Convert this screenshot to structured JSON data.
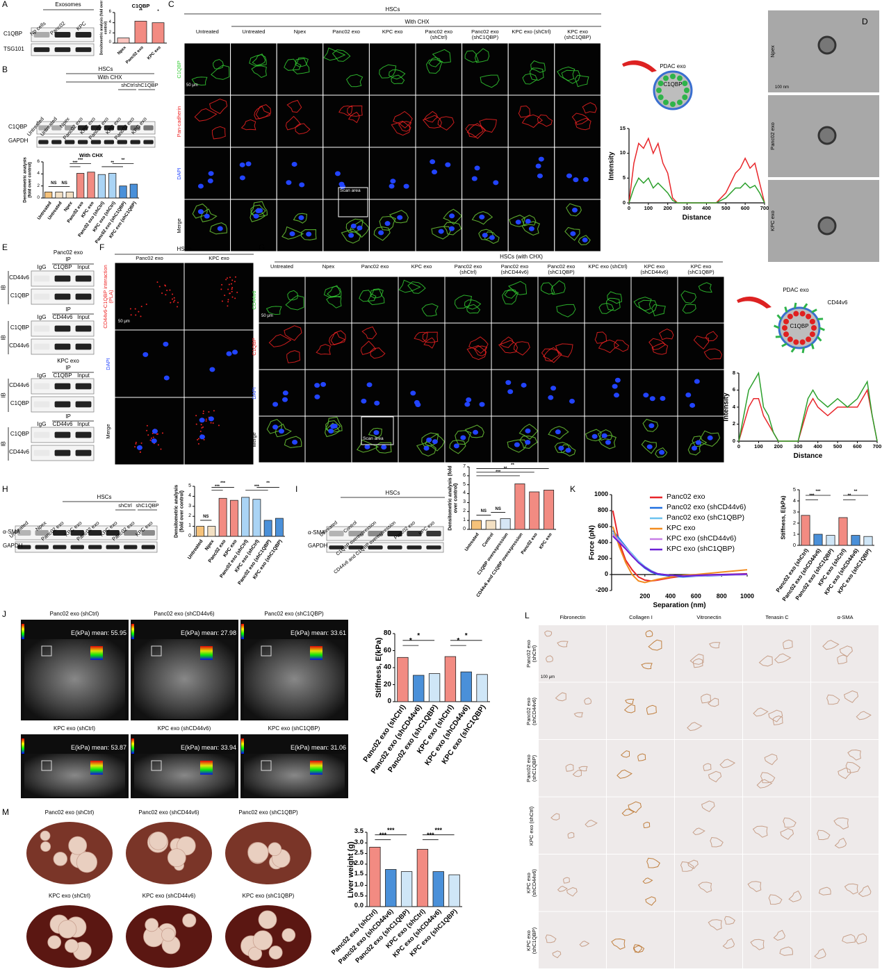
{
  "A": {
    "label": "A",
    "group": "Exosomes",
    "lanes": [
      "Np cells",
      "Panc02",
      "KPC"
    ],
    "bands": [
      "C1QBP",
      "TSG101"
    ],
    "chart": {
      "type": "bar",
      "title": "C1QBP",
      "ylabel": "Densitometric analysis (fold over control)",
      "categories": [
        "Npex",
        "Panc02 exo",
        "KPC exo"
      ],
      "values": [
        1,
        4.3,
        4
      ],
      "colors": [
        "#fbc4be",
        "#f28b82",
        "#f28b82"
      ],
      "ylim": [
        0,
        6
      ],
      "yticks": [
        0,
        2,
        4,
        6
      ],
      "annotations": [
        "**",
        "*"
      ]
    }
  },
  "B": {
    "label": "B",
    "header": "HSCs",
    "subheader": "With CHX",
    "groups": [
      "shCtrl",
      "shC1QBP"
    ],
    "lanes": [
      "Untreated",
      "Untreated",
      "Npex",
      "Panc02 exo",
      "KPC exo",
      "Panc02 exo",
      "KPC exo",
      "Panc02 exo",
      "KPC exo"
    ],
    "bands": [
      "C1QBP",
      "GAPDH"
    ],
    "chart": {
      "type": "bar",
      "title": "With CHX",
      "ylabel": "Densitometric analysis (fold over control)",
      "categories": [
        "Untreated",
        "Untreated",
        "Npex",
        "Panc02 exo",
        "KPC exo",
        "Panc02 exo (shCtrl)",
        "KPC exo (shCtrl)",
        "Panc02 exo (shC1QBP)",
        "KPC exo (shC1QBP)"
      ],
      "values": [
        1,
        1,
        1,
        4.1,
        4.3,
        3.9,
        4.1,
        2,
        2.3
      ],
      "colors": [
        "#f6c27a",
        "#f3e0c3",
        "#f3e0c3",
        "#f28b82",
        "#f28b82",
        "#aad4f5",
        "#aad4f5",
        "#4a90d9",
        "#4a90d9"
      ],
      "ylim": [
        0,
        6
      ],
      "yticks": [
        0,
        2,
        4,
        6
      ],
      "annotations": [
        "NS",
        "NS",
        "***",
        "***",
        "**",
        "**"
      ]
    }
  },
  "C": {
    "label": "C",
    "header": "HSCs",
    "subheader": "With CHX",
    "columns": [
      "Untreated",
      "Untreated",
      "Npex",
      "Panc02 exo",
      "KPC exo",
      "Panc02 exo (shCtrl)",
      "Panc02 exo (shC1QBP)",
      "KPC exo (shCtrl)",
      "KPC exo (shC1QBP)"
    ],
    "rows": [
      "C1QBP",
      "Pan-cadherin",
      "DAPI",
      "Merge"
    ],
    "scale": "50 μm",
    "scan": "Scan area",
    "scheme": [
      "PDAC exo",
      "C1QBP"
    ],
    "chart": {
      "type": "line",
      "xlabel": "Distance",
      "ylabel": "Intensity",
      "x": [
        0,
        25,
        50,
        75,
        100,
        125,
        150,
        175,
        200,
        225,
        250,
        300,
        350,
        400,
        450,
        500,
        525,
        550,
        575,
        600,
        625,
        650,
        675,
        700
      ],
      "series": [
        {
          "color": "#e8262a",
          "values": [
            0,
            8,
            12,
            11,
            13,
            10,
            12,
            8,
            6,
            1,
            0,
            0,
            0,
            0,
            0,
            2,
            4,
            6,
            7,
            9,
            7,
            8,
            4,
            0
          ]
        },
        {
          "color": "#2ca02c",
          "values": [
            0,
            3,
            5,
            4,
            5,
            3,
            4,
            3,
            2,
            0.5,
            0,
            0,
            0,
            0,
            0,
            1,
            2,
            3,
            3,
            4,
            3,
            3.5,
            2,
            0
          ]
        }
      ],
      "xlim": [
        0,
        700
      ],
      "xticks": [
        0,
        100,
        200,
        300,
        400,
        500,
        600,
        700
      ],
      "ylim": [
        0,
        15
      ],
      "yticks": [
        0,
        5,
        10,
        15
      ]
    }
  },
  "D": {
    "label": "D",
    "rows": [
      "Npex",
      "Panc02 exo",
      "KPC exo"
    ],
    "scale": "100 nm"
  },
  "E": {
    "label": "E",
    "blocks": [
      {
        "title": "Panc02 exo",
        "ip": "IP",
        "lanes": [
          "IgG",
          "C1QBP",
          "Input"
        ],
        "ib": "IB",
        "bands": [
          "CD44v6",
          "C1QBP"
        ]
      },
      {
        "ip": "IP",
        "lanes": [
          "IgG",
          "CD44v6",
          "Input"
        ],
        "ib": "IB",
        "bands": [
          "C1QBP",
          "CD44v6"
        ]
      },
      {
        "title": "KPC exo",
        "ip": "IP",
        "lanes": [
          "IgG",
          "C1QBP",
          "Input"
        ],
        "ib": "IB",
        "bands": [
          "CD44v6",
          "C1QBP"
        ]
      },
      {
        "ip": "IP",
        "lanes": [
          "IgG",
          "CD44v6",
          "Input"
        ],
        "ib": "IB",
        "bands": [
          "C1QBP",
          "CD44v6"
        ]
      }
    ]
  },
  "F": {
    "label": "F",
    "header": "HSCs",
    "columns": [
      "Panc02 exo",
      "KPC exo"
    ],
    "rows": [
      "CD44v6-C1QBP interaction (PLA)",
      "DAPI",
      "Merge"
    ],
    "scale": "50 μm"
  },
  "G": {
    "label": "G",
    "header": "HSCs (with CHX)",
    "columns": [
      "Untreated",
      "Npex",
      "Panc02 exo",
      "KPC exo",
      "Panc02 exo (shCtrl)",
      "Panc02 exo (shCD44v6)",
      "Panc02 exo (shC1QBP)",
      "KPC exo (shCtrl)",
      "KPC exo (shCD44v6)",
      "KPC exo (shC1QBP)"
    ],
    "rows": [
      "CD44v6",
      "C1QBP",
      "DAPI",
      "Merge"
    ],
    "scale": "50 μm",
    "scan": "Scan area",
    "scheme": [
      "PDAC exo",
      "CD44v6",
      "C1QBP"
    ],
    "chart": {
      "type": "line",
      "xlabel": "Distance",
      "ylabel": "Intensity",
      "x": [
        0,
        25,
        50,
        75,
        100,
        125,
        150,
        175,
        200,
        250,
        300,
        350,
        375,
        400,
        450,
        500,
        550,
        600,
        625,
        650,
        675,
        700
      ],
      "series": [
        {
          "color": "#e8262a",
          "values": [
            0,
            2,
            4,
            5,
            5,
            3,
            2,
            1,
            0,
            0,
            0,
            4,
            5,
            4,
            3,
            4,
            4,
            4,
            5,
            6,
            3,
            0
          ]
        },
        {
          "color": "#2ca02c",
          "values": [
            0,
            3,
            6,
            7,
            8,
            4,
            3,
            1,
            0,
            0,
            0,
            5,
            6,
            5,
            4,
            5,
            4,
            5,
            6,
            7,
            3,
            0
          ]
        }
      ],
      "xlim": [
        0,
        700
      ],
      "xticks": [
        0,
        100,
        200,
        300,
        400,
        500,
        600,
        700
      ],
      "ylim": [
        0,
        8
      ],
      "yticks": [
        0,
        2,
        4,
        6,
        8
      ]
    }
  },
  "H": {
    "label": "H",
    "header": "HSCs",
    "groups": [
      "shCtrl",
      "shC1QBP"
    ],
    "lanes": [
      "Untreated",
      "Npex",
      "Panc02 exo",
      "KPC exo",
      "Panc02 exo",
      "KPC exo",
      "Panc02 exo",
      "KPC exo"
    ],
    "bands": [
      "α-SMA",
      "GAPDH"
    ],
    "chart": {
      "type": "bar",
      "ylabel": "Densitometric analysis (fold over control)",
      "categories": [
        "Untreated",
        "Npex",
        "Panc02 exo",
        "KPC exo",
        "Panc02 exo (shCtrl)",
        "KPC exo (shCtrl)",
        "Panc02 exo (shC1QBP)",
        "KPC exo (shC1QBP)"
      ],
      "values": [
        1,
        1,
        3.8,
        3.6,
        3.9,
        3.7,
        1.6,
        1.8
      ],
      "colors": [
        "#f6c27a",
        "#f3e0c3",
        "#f28b82",
        "#f28b82",
        "#aad4f5",
        "#aad4f5",
        "#4a90d9",
        "#4a90d9"
      ],
      "ylim": [
        0,
        5
      ],
      "yticks": [
        0,
        1,
        2,
        3,
        4,
        5
      ],
      "annotations": [
        "NS",
        "***",
        "***",
        "***",
        "**"
      ]
    }
  },
  "I": {
    "label": "I",
    "header": "HSCs",
    "lanes": [
      "Untreated",
      "Control",
      "C1QBP overexpression",
      "CD44v6 and C1QBP overexpression",
      "Panc02 exo",
      "KPC exo"
    ],
    "bands": [
      "α-SMA",
      "GAPDH"
    ],
    "chart": {
      "type": "bar",
      "ylabel": "Densitometric analysis (fold over control)",
      "categories": [
        "Untreated",
        "Control",
        "C1QBP overexpression",
        "CD44v6 and C1QBP overexpression",
        "Panc02 exo",
        "KPC exo"
      ],
      "values": [
        1,
        1,
        1.2,
        5.1,
        4.2,
        4.4
      ],
      "colors": [
        "#f6c27a",
        "#f3e0c3",
        "#d6e6f5",
        "#f28b82",
        "#f28b82",
        "#f28b82"
      ],
      "ylim": [
        0,
        7
      ],
      "yticks": [
        0,
        1,
        2,
        3,
        4,
        5,
        6,
        7
      ],
      "annotations": [
        "NS",
        "NS",
        "**",
        "**",
        "***"
      ]
    }
  },
  "K": {
    "label": "K",
    "force": {
      "type": "line",
      "xlabel": "Separation (nm)",
      "ylabel": "Force (pN)",
      "x": [
        -50,
        0,
        50,
        100,
        150,
        200,
        250,
        300,
        400,
        500,
        600,
        800,
        1000
      ],
      "series": [
        {
          "name": "Panc02 exo",
          "color": "#e8262a",
          "values": [
            800,
            400,
            180,
            60,
            -30,
            -70,
            -80,
            -70,
            -40,
            -20,
            -10,
            0,
            10
          ]
        },
        {
          "name": "Panc02 exo (shCD44v6)",
          "color": "#1f6fe0",
          "values": [
            550,
            450,
            350,
            250,
            150,
            80,
            30,
            0,
            -20,
            -30,
            -20,
            -10,
            0
          ]
        },
        {
          "name": "Panc02 exo (shC1QBP)",
          "color": "#6cc3ef",
          "values": [
            520,
            430,
            340,
            260,
            170,
            100,
            50,
            10,
            -10,
            -20,
            -10,
            -5,
            0
          ]
        },
        {
          "name": "KPC exo",
          "color": "#f28b1f",
          "values": [
            600,
            350,
            150,
            0,
            -80,
            -100,
            -80,
            -60,
            -30,
            -10,
            0,
            30,
            60
          ]
        },
        {
          "name": "KPC exo (shCD44v6)",
          "color": "#c77ee6",
          "values": [
            500,
            420,
            330,
            240,
            150,
            90,
            40,
            10,
            -10,
            -20,
            -15,
            -5,
            0
          ]
        },
        {
          "name": "KPC exo (shC1QBP)",
          "color": "#6a1fd6",
          "values": [
            480,
            400,
            320,
            230,
            150,
            90,
            40,
            10,
            -10,
            -20,
            -10,
            0,
            5
          ]
        }
      ],
      "xlim": [
        -60,
        1000
      ],
      "xticks": [
        200,
        400,
        600,
        800,
        1000
      ],
      "ylim": [
        -200,
        1000
      ],
      "yticks": [
        -200,
        0,
        200,
        400,
        600,
        800,
        1000
      ],
      "legend": "top-right"
    },
    "chart": {
      "type": "bar",
      "ylabel": "Stiffness, E(kPa)",
      "categories": [
        "Panc02 exo (shCtrl)",
        "Panc02 exo (shCD44v6)",
        "Panc02 exo (shC1QBP)",
        "KPC exo (shCtrl)",
        "KPC exo (shCD44v6)",
        "KPC exo (shC1QBP)"
      ],
      "values": [
        2.7,
        1,
        0.9,
        2.5,
        0.9,
        0.8
      ],
      "colors": [
        "#f28b82",
        "#4a90d9",
        "#cfe6f7",
        "#f28b82",
        "#4a90d9",
        "#cfe6f7"
      ],
      "ylim": [
        0,
        5
      ],
      "yticks": [
        0,
        1,
        2,
        3,
        4,
        5
      ],
      "annotations": [
        "***",
        "***",
        "**",
        "**"
      ]
    }
  },
  "J": {
    "label": "J",
    "titles": [
      "Panc02 exo (shCtrl)",
      "Panc02 exo (shCD44v6)",
      "Panc02 exo (shC1QBP)",
      "KPC exo (shCtrl)",
      "KPC exo (shCD44v6)",
      "KPC exo (shC1QBP)"
    ],
    "readouts": [
      "E(kPa) mean: 55.95",
      "E(kPa) mean: 27.98",
      "E(kPa) mean: 33.61",
      "E(kPa) mean: 53.87",
      "E(kPa) mean: 33.94",
      "E(kPa) mean: 31.06"
    ],
    "chart": {
      "type": "bar",
      "ylabel": "Stiffness, E(kPa)",
      "categories": [
        "Panc02 exo (shCtrl)",
        "Panc02 exo (shCD44v6)",
        "Panc02 exo (shC1QBP)",
        "KPC exo (shCtrl)",
        "KPC exo (shCD44v6)",
        "KPC exo (shC1QBP)"
      ],
      "values": [
        52,
        31,
        33,
        53,
        35,
        32
      ],
      "colors": [
        "#f28b82",
        "#4a90d9",
        "#cfe6f7",
        "#f28b82",
        "#4a90d9",
        "#cfe6f7"
      ],
      "ylim": [
        0,
        80
      ],
      "yticks": [
        0,
        20,
        40,
        60,
        80
      ],
      "annotations": [
        "*",
        "*",
        "*",
        "*"
      ]
    }
  },
  "L": {
    "label": "L",
    "columns": [
      "Fibronectin",
      "Collagen I",
      "Vitronectin",
      "Tenasin C",
      "α-SMA"
    ],
    "rows": [
      "Panc02 exo (shCtrl)",
      "Panc02 exo (shCD44v6)",
      "Panc02 exo (shC1QBP)",
      "KPC exo (shCtrl)",
      "KPC exo (shCD44v6)",
      "KPC exo (shC1QBP)"
    ],
    "scale": "100 μm"
  },
  "M": {
    "label": "M",
    "titles": [
      "Panc02 exo (shCtrl)",
      "Panc02 exo (shCD44v6)",
      "Panc02 exo (shC1QBP)",
      "KPC exo (shCtrl)",
      "KPC exo (shCD44v6)",
      "KPC exo (shC1QBP)"
    ],
    "chart": {
      "type": "bar",
      "ylabel": "Liver weight (g)",
      "categories": [
        "Panc02 exo (shCtrl)",
        "Panc02 exo (shCD44v6)",
        "Panc02 exo (shC1QBP)",
        "KPC exo (shCtrl)",
        "KPC exo (shCD44v6)",
        "KPC exo (shC1QBP)"
      ],
      "values": [
        2.8,
        1.75,
        1.65,
        2.7,
        1.65,
        1.5
      ],
      "colors": [
        "#f28b82",
        "#4a90d9",
        "#cfe6f7",
        "#f28b82",
        "#4a90d9",
        "#cfe6f7"
      ],
      "ylim": [
        0,
        3.5
      ],
      "yticks": [
        {
          "value": 0,
          "label": "0.0"
        },
        0.5,
        {
          "value": 1,
          "label": "1.0"
        },
        1.5,
        {
          "value": 2,
          "label": "2.0"
        },
        2.5,
        {
          "value": 3,
          "label": "3.0"
        },
        3.5
      ],
      "annotations": [
        "***",
        "***",
        "***",
        "***"
      ]
    }
  }
}
